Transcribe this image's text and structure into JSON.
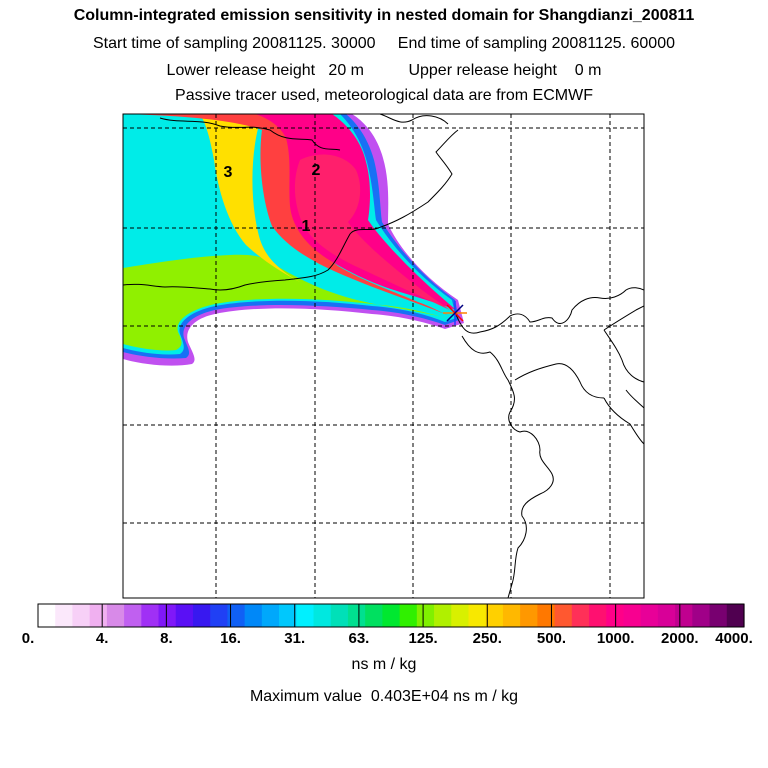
{
  "header": {
    "title": "Column-integrated emission sensitivity in nested domain for Shangdianzi_200811",
    "sampling_line": "Start time of sampling 20081125. 30000     End time of sampling 20081125. 60000",
    "height_line": "Lower release height   20 m          Upper release height    0 m",
    "tracer_line": "Passive tracer used, meteorological data are from ECMWF"
  },
  "map": {
    "cluster_labels": [
      "1",
      "2",
      "3"
    ],
    "release_marker": "asterisk-star",
    "colors": {
      "frame": "#000000",
      "coastline": "#000000",
      "gridlines": "#000000"
    }
  },
  "colorbar": {
    "tick_labels": [
      "0.",
      "4.",
      "8.",
      "16.",
      "31.",
      "63.",
      "125.",
      "250.",
      "500.",
      "1000.",
      "2000.",
      "4000."
    ],
    "units": "ns m / kg",
    "colors": [
      "#ffffff",
      "#fbe8fb",
      "#f7d0f7",
      "#f0b0f0",
      "#d88ae8",
      "#c060f0",
      "#a030f5",
      "#8018f8",
      "#5a10f5",
      "#3818f0",
      "#2040f5",
      "#1060f5",
      "#0088f8",
      "#00a8fb",
      "#00c8fd",
      "#00f0ff",
      "#00e8e0",
      "#00e0b8",
      "#00e090",
      "#00e060",
      "#00e830",
      "#30f000",
      "#80f000",
      "#b0f000",
      "#d8f000",
      "#f8e800",
      "#ffd000",
      "#ffb800",
      "#ff9800",
      "#ff7800",
      "#ff5830",
      "#ff3058",
      "#ff1070",
      "#ff0088",
      "#f80090",
      "#e80098",
      "#d80098",
      "#c0008f",
      "#a00088",
      "#780070",
      "#500050"
    ]
  },
  "footer": {
    "max_value": "Maximum value  0.403E+04 ns m / kg"
  }
}
